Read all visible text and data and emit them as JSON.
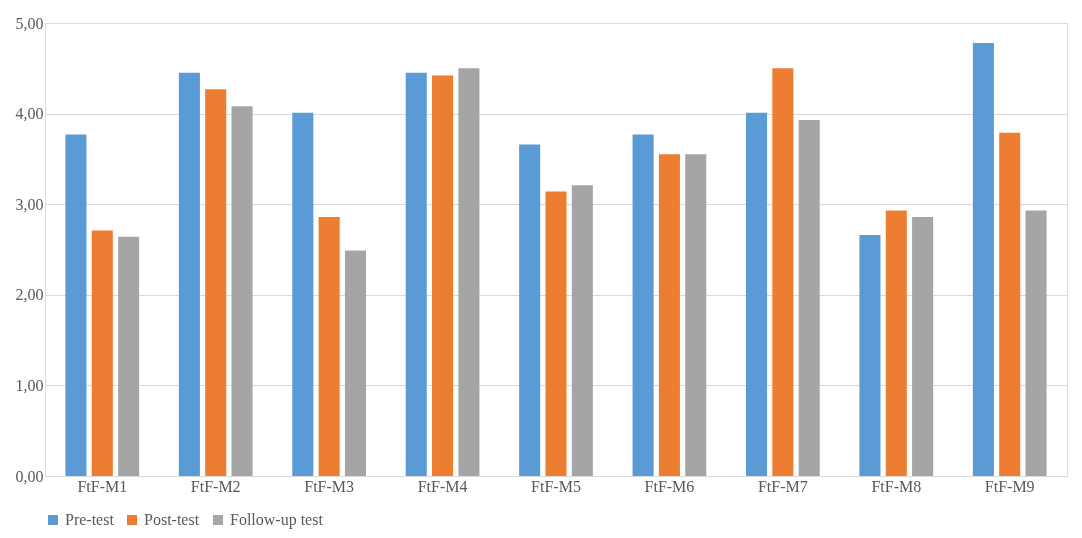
{
  "chart_data": {
    "type": "bar",
    "categories": [
      "FtF-M1",
      "FtF-M2",
      "FtF-M3",
      "FtF-M4",
      "FtF-M5",
      "FtF-M6",
      "FtF-M7",
      "FtF-M8",
      "FtF-M9"
    ],
    "series": [
      {
        "name": "Pre-test",
        "color": "#5b9bd5",
        "values": [
          3.77,
          4.45,
          4.01,
          4.45,
          3.66,
          3.77,
          4.01,
          2.66,
          4.78
        ]
      },
      {
        "name": "Post-test",
        "color": "#ed7d31",
        "values": [
          2.71,
          4.27,
          2.86,
          4.42,
          3.14,
          3.55,
          4.5,
          2.93,
          3.79
        ]
      },
      {
        "name": "Follow-up test",
        "color": "#a5a5a5",
        "values": [
          2.64,
          4.08,
          2.49,
          4.5,
          3.21,
          3.55,
          3.93,
          2.86,
          2.93
        ]
      }
    ],
    "ylim": [
      0,
      5
    ],
    "yticks": [
      {
        "value": 0,
        "label": "0,00"
      },
      {
        "value": 1,
        "label": "1,00"
      },
      {
        "value": 2,
        "label": "2,00"
      },
      {
        "value": 3,
        "label": "3,00"
      },
      {
        "value": 4,
        "label": "4,00"
      },
      {
        "value": 5,
        "label": "5,00"
      }
    ],
    "grid": "y",
    "legend": "bottom"
  }
}
